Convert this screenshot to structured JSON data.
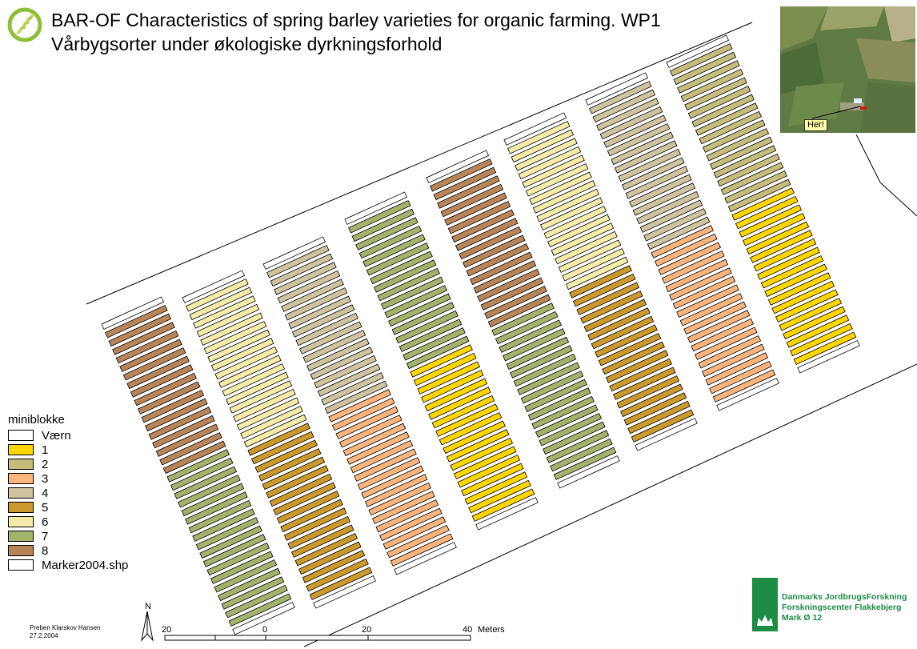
{
  "title": {
    "line1": "BAR-OF Characteristics of spring barley varieties for organic farming. WP1",
    "line2": "Vårbygsorter under økologiske dyrkningsforhold"
  },
  "legend": {
    "title": "miniblokke",
    "items": [
      {
        "label": "Værn",
        "color": "#ffffff"
      },
      {
        "label": "1",
        "color": "#ffd600"
      },
      {
        "label": "2",
        "color": "#c4bd7c"
      },
      {
        "label": "3",
        "color": "#fbb57c"
      },
      {
        "label": "4",
        "color": "#cfc4a0"
      },
      {
        "label": "5",
        "color": "#cc9a2c"
      },
      {
        "label": "6",
        "color": "#f4eca8"
      },
      {
        "label": "7",
        "color": "#a4b36c"
      },
      {
        "label": "8",
        "color": "#b98558"
      },
      {
        "label": "Marker2004.shp",
        "color": "#ffffff"
      }
    ]
  },
  "inset": {
    "label": "Her!"
  },
  "scalebar": {
    "ticks": [
      "20",
      "0",
      "20",
      "40"
    ],
    "unit": "Meters"
  },
  "north_label": "N",
  "author": {
    "name": "Preben Klarskov Hansen",
    "date": "27.2.2004"
  },
  "institution": {
    "line1": "Danmarks JordbrugsForskning",
    "line2": "Forskningscenter Flakkebjerg",
    "line3": "Mark Ø 12"
  },
  "strips": [
    {
      "codes": [
        "V",
        "8",
        "8",
        "8",
        "8",
        "8",
        "8",
        "8",
        "8",
        "8",
        "8",
        "8",
        "8",
        "8",
        "8",
        "8",
        "8",
        "8",
        "7",
        "7",
        "7",
        "7",
        "7",
        "7",
        "7",
        "7",
        "7",
        "7",
        "7",
        "7",
        "7",
        "7",
        "7",
        "7",
        "7",
        "7",
        "V"
      ]
    },
    {
      "codes": [
        "V",
        "6",
        "6",
        "6",
        "6",
        "6",
        "6",
        "6",
        "6",
        "6",
        "6",
        "6",
        "6",
        "6",
        "6",
        "6",
        "6",
        "6",
        "5",
        "5",
        "5",
        "5",
        "5",
        "5",
        "5",
        "5",
        "5",
        "5",
        "5",
        "5",
        "5",
        "5",
        "5",
        "5",
        "5",
        "5",
        "V"
      ]
    },
    {
      "codes": [
        "V",
        "4",
        "4",
        "4",
        "4",
        "4",
        "4",
        "4",
        "4",
        "4",
        "4",
        "4",
        "4",
        "4",
        "4",
        "4",
        "4",
        "4",
        "3",
        "3",
        "3",
        "3",
        "3",
        "3",
        "3",
        "3",
        "3",
        "3",
        "3",
        "3",
        "3",
        "3",
        "3",
        "3",
        "3",
        "3",
        "V"
      ]
    },
    {
      "codes": [
        "V",
        "7",
        "7",
        "7",
        "7",
        "7",
        "7",
        "7",
        "7",
        "7",
        "7",
        "7",
        "7",
        "7",
        "7",
        "7",
        "7",
        "7",
        "1",
        "1",
        "1",
        "1",
        "1",
        "1",
        "1",
        "1",
        "1",
        "1",
        "1",
        "1",
        "1",
        "1",
        "1",
        "1",
        "1",
        "1",
        "V"
      ]
    },
    {
      "codes": [
        "V",
        "8",
        "8",
        "8",
        "8",
        "8",
        "8",
        "8",
        "8",
        "8",
        "8",
        "8",
        "8",
        "8",
        "8",
        "8",
        "8",
        "8",
        "7",
        "7",
        "7",
        "7",
        "7",
        "7",
        "7",
        "7",
        "7",
        "7",
        "7",
        "7",
        "7",
        "7",
        "7",
        "7",
        "7",
        "7",
        "V"
      ]
    },
    {
      "codes": [
        "V",
        "6",
        "6",
        "6",
        "6",
        "6",
        "6",
        "6",
        "6",
        "6",
        "6",
        "6",
        "6",
        "6",
        "6",
        "6",
        "6",
        "6",
        "5",
        "5",
        "5",
        "5",
        "5",
        "5",
        "5",
        "5",
        "5",
        "5",
        "5",
        "5",
        "5",
        "5",
        "5",
        "5",
        "5",
        "5",
        "V"
      ]
    },
    {
      "codes": [
        "V",
        "4",
        "4",
        "4",
        "4",
        "4",
        "4",
        "4",
        "4",
        "4",
        "4",
        "4",
        "4",
        "4",
        "4",
        "4",
        "4",
        "4",
        "3",
        "3",
        "3",
        "3",
        "3",
        "3",
        "3",
        "3",
        "3",
        "3",
        "3",
        "3",
        "3",
        "3",
        "3",
        "3",
        "3",
        "3",
        "V"
      ]
    },
    {
      "codes": [
        "V",
        "2",
        "2",
        "2",
        "2",
        "2",
        "2",
        "2",
        "2",
        "2",
        "2",
        "2",
        "2",
        "2",
        "2",
        "2",
        "2",
        "2",
        "1",
        "1",
        "1",
        "1",
        "1",
        "1",
        "1",
        "1",
        "1",
        "1",
        "1",
        "1",
        "1",
        "1",
        "1",
        "1",
        "1",
        "1",
        "V"
      ]
    }
  ]
}
